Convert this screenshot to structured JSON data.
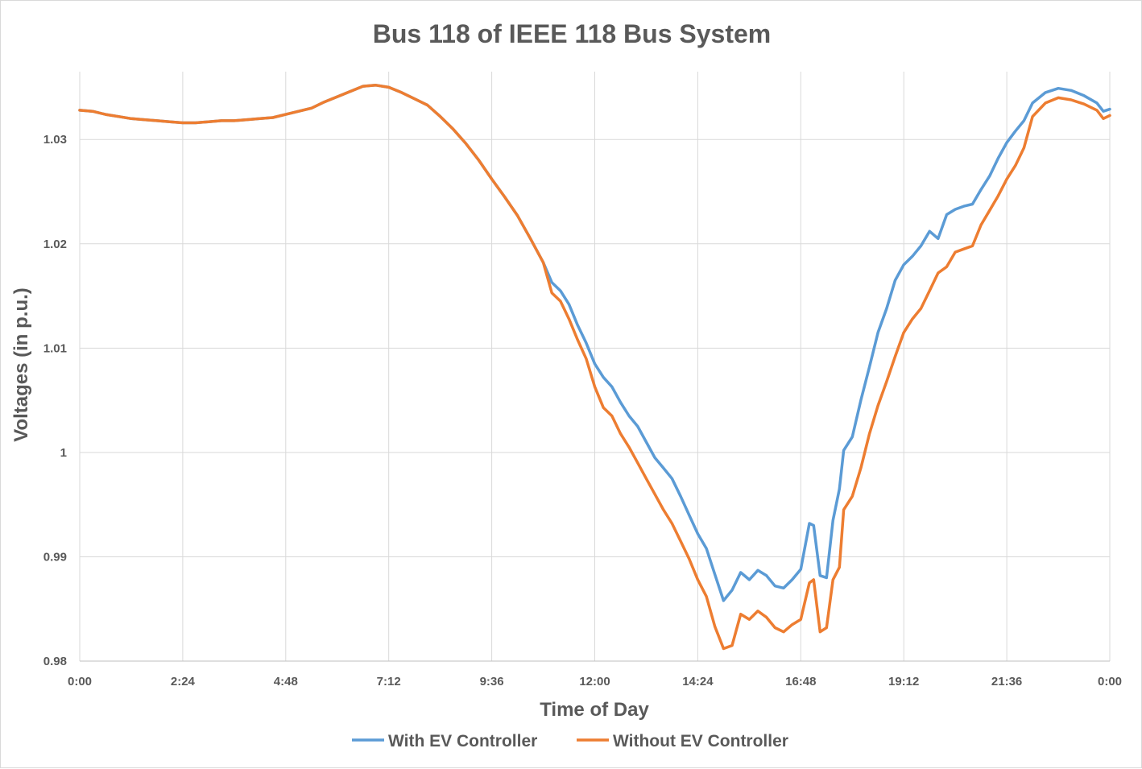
{
  "chart_data": {
    "type": "line",
    "title": "Bus 118 of IEEE 118 Bus System",
    "xlabel": "Time of Day",
    "ylabel": "Voltages (in p.u.)",
    "ylim": [
      0.98,
      1.0365
    ],
    "yticks": [
      0.98,
      0.99,
      1,
      1.01,
      1.02,
      1.03
    ],
    "ytick_labels": [
      "0.98",
      "0.99",
      "1",
      "1.01",
      "1.02",
      "1.03"
    ],
    "xlim": [
      0,
      24
    ],
    "xticks": [
      0,
      2.4,
      4.8,
      7.2,
      9.6,
      12,
      14.4,
      16.8,
      19.2,
      21.6,
      24
    ],
    "xtick_labels": [
      "0:00",
      "2:24",
      "4:48",
      "7:12",
      "9:36",
      "12:00",
      "14:24",
      "16:48",
      "19:12",
      "21:36",
      "0:00"
    ],
    "grid": true,
    "legend_position": "bottom",
    "series": [
      {
        "name": "With EV Controller",
        "color": "#5b9bd5",
        "points": [
          [
            0,
            1.0328
          ],
          [
            0.3,
            1.0327
          ],
          [
            0.6,
            1.0324
          ],
          [
            0.9,
            1.0322
          ],
          [
            1.2,
            1.032
          ],
          [
            1.5,
            1.0319
          ],
          [
            1.8,
            1.0318
          ],
          [
            2.1,
            1.0317
          ],
          [
            2.4,
            1.0316
          ],
          [
            2.7,
            1.0316
          ],
          [
            3.0,
            1.0317
          ],
          [
            3.3,
            1.0318
          ],
          [
            3.6,
            1.0318
          ],
          [
            3.9,
            1.0319
          ],
          [
            4.2,
            1.032
          ],
          [
            4.5,
            1.0321
          ],
          [
            4.8,
            1.0324
          ],
          [
            5.1,
            1.0327
          ],
          [
            5.4,
            1.033
          ],
          [
            5.7,
            1.0336
          ],
          [
            6.0,
            1.0341
          ],
          [
            6.3,
            1.0346
          ],
          [
            6.6,
            1.0351
          ],
          [
            6.9,
            1.0352
          ],
          [
            7.2,
            1.035
          ],
          [
            7.5,
            1.0345
          ],
          [
            7.8,
            1.0339
          ],
          [
            8.1,
            1.0333
          ],
          [
            8.4,
            1.0322
          ],
          [
            8.7,
            1.031
          ],
          [
            9.0,
            1.0296
          ],
          [
            9.3,
            1.028
          ],
          [
            9.6,
            1.0262
          ],
          [
            9.9,
            1.0245
          ],
          [
            10.2,
            1.0227
          ],
          [
            10.5,
            1.0205
          ],
          [
            10.8,
            1.0182
          ],
          [
            11.0,
            1.0163
          ],
          [
            11.2,
            1.0155
          ],
          [
            11.4,
            1.0142
          ],
          [
            11.6,
            1.0122
          ],
          [
            11.8,
            1.0105
          ],
          [
            12.0,
            1.0085
          ],
          [
            12.2,
            1.0072
          ],
          [
            12.4,
            1.0063
          ],
          [
            12.6,
            1.0048
          ],
          [
            12.8,
            1.0035
          ],
          [
            13.0,
            1.0025
          ],
          [
            13.2,
            1.001
          ],
          [
            13.4,
            0.9995
          ],
          [
            13.6,
            0.9985
          ],
          [
            13.8,
            0.9975
          ],
          [
            14.0,
            0.9958
          ],
          [
            14.2,
            0.994
          ],
          [
            14.4,
            0.9922
          ],
          [
            14.6,
            0.9908
          ],
          [
            14.8,
            0.9883
          ],
          [
            15.0,
            0.9858
          ],
          [
            15.2,
            0.9868
          ],
          [
            15.4,
            0.9885
          ],
          [
            15.6,
            0.9878
          ],
          [
            15.8,
            0.9887
          ],
          [
            16.0,
            0.9882
          ],
          [
            16.2,
            0.9872
          ],
          [
            16.4,
            0.987
          ],
          [
            16.6,
            0.9878
          ],
          [
            16.8,
            0.9888
          ],
          [
            17.0,
            0.9932
          ],
          [
            17.1,
            0.993
          ],
          [
            17.25,
            0.9882
          ],
          [
            17.4,
            0.988
          ],
          [
            17.55,
            0.9935
          ],
          [
            17.7,
            0.9965
          ],
          [
            17.8,
            1.0002
          ],
          [
            18.0,
            1.0015
          ],
          [
            18.2,
            1.005
          ],
          [
            18.4,
            1.0082
          ],
          [
            18.6,
            1.0115
          ],
          [
            18.8,
            1.0138
          ],
          [
            19.0,
            1.0165
          ],
          [
            19.2,
            1.018
          ],
          [
            19.4,
            1.0188
          ],
          [
            19.6,
            1.0198
          ],
          [
            19.8,
            1.0212
          ],
          [
            20.0,
            1.0205
          ],
          [
            20.2,
            1.0228
          ],
          [
            20.4,
            1.0233
          ],
          [
            20.6,
            1.0236
          ],
          [
            20.8,
            1.0238
          ],
          [
            21.0,
            1.0252
          ],
          [
            21.2,
            1.0265
          ],
          [
            21.4,
            1.0282
          ],
          [
            21.6,
            1.0297
          ],
          [
            21.8,
            1.0308
          ],
          [
            22.0,
            1.0318
          ],
          [
            22.2,
            1.0335
          ],
          [
            22.5,
            1.0345
          ],
          [
            22.8,
            1.0349
          ],
          [
            23.1,
            1.0347
          ],
          [
            23.4,
            1.0342
          ],
          [
            23.7,
            1.0335
          ],
          [
            23.85,
            1.0327
          ],
          [
            24.0,
            1.0329
          ]
        ]
      },
      {
        "name": "Without EV Controller",
        "color": "#ed7d31",
        "points": [
          [
            0,
            1.0328
          ],
          [
            0.3,
            1.0327
          ],
          [
            0.6,
            1.0324
          ],
          [
            0.9,
            1.0322
          ],
          [
            1.2,
            1.032
          ],
          [
            1.5,
            1.0319
          ],
          [
            1.8,
            1.0318
          ],
          [
            2.1,
            1.0317
          ],
          [
            2.4,
            1.0316
          ],
          [
            2.7,
            1.0316
          ],
          [
            3.0,
            1.0317
          ],
          [
            3.3,
            1.0318
          ],
          [
            3.6,
            1.0318
          ],
          [
            3.9,
            1.0319
          ],
          [
            4.2,
            1.032
          ],
          [
            4.5,
            1.0321
          ],
          [
            4.8,
            1.0324
          ],
          [
            5.1,
            1.0327
          ],
          [
            5.4,
            1.033
          ],
          [
            5.7,
            1.0336
          ],
          [
            6.0,
            1.0341
          ],
          [
            6.3,
            1.0346
          ],
          [
            6.6,
            1.0351
          ],
          [
            6.9,
            1.0352
          ],
          [
            7.2,
            1.035
          ],
          [
            7.5,
            1.0345
          ],
          [
            7.8,
            1.0339
          ],
          [
            8.1,
            1.0333
          ],
          [
            8.4,
            1.0322
          ],
          [
            8.7,
            1.031
          ],
          [
            9.0,
            1.0296
          ],
          [
            9.3,
            1.028
          ],
          [
            9.6,
            1.0262
          ],
          [
            9.9,
            1.0245
          ],
          [
            10.2,
            1.0227
          ],
          [
            10.5,
            1.0205
          ],
          [
            10.8,
            1.0182
          ],
          [
            11.0,
            1.0153
          ],
          [
            11.2,
            1.0145
          ],
          [
            11.4,
            1.0128
          ],
          [
            11.6,
            1.0108
          ],
          [
            11.8,
            1.009
          ],
          [
            12.0,
            1.0063
          ],
          [
            12.2,
            1.0043
          ],
          [
            12.4,
            1.0035
          ],
          [
            12.6,
            1.0018
          ],
          [
            12.8,
            1.0005
          ],
          [
            13.0,
            0.999
          ],
          [
            13.2,
            0.9975
          ],
          [
            13.4,
            0.996
          ],
          [
            13.6,
            0.9945
          ],
          [
            13.8,
            0.9932
          ],
          [
            14.0,
            0.9915
          ],
          [
            14.2,
            0.9898
          ],
          [
            14.4,
            0.9878
          ],
          [
            14.6,
            0.9862
          ],
          [
            14.8,
            0.9833
          ],
          [
            15.0,
            0.9812
          ],
          [
            15.2,
            0.9815
          ],
          [
            15.4,
            0.9845
          ],
          [
            15.6,
            0.984
          ],
          [
            15.8,
            0.9848
          ],
          [
            16.0,
            0.9842
          ],
          [
            16.2,
            0.9832
          ],
          [
            16.4,
            0.9828
          ],
          [
            16.6,
            0.9835
          ],
          [
            16.8,
            0.984
          ],
          [
            17.0,
            0.9875
          ],
          [
            17.1,
            0.9878
          ],
          [
            17.25,
            0.9828
          ],
          [
            17.4,
            0.9832
          ],
          [
            17.55,
            0.9878
          ],
          [
            17.7,
            0.989
          ],
          [
            17.8,
            0.9945
          ],
          [
            18.0,
            0.9958
          ],
          [
            18.2,
            0.9985
          ],
          [
            18.4,
            1.0018
          ],
          [
            18.6,
            1.0045
          ],
          [
            18.8,
            1.0068
          ],
          [
            19.0,
            1.0092
          ],
          [
            19.2,
            1.0115
          ],
          [
            19.4,
            1.0128
          ],
          [
            19.6,
            1.0138
          ],
          [
            19.8,
            1.0155
          ],
          [
            20.0,
            1.0172
          ],
          [
            20.2,
            1.0178
          ],
          [
            20.4,
            1.0192
          ],
          [
            20.6,
            1.0195
          ],
          [
            20.8,
            1.0198
          ],
          [
            21.0,
            1.0218
          ],
          [
            21.2,
            1.0232
          ],
          [
            21.4,
            1.0246
          ],
          [
            21.6,
            1.0262
          ],
          [
            21.8,
            1.0275
          ],
          [
            22.0,
            1.0292
          ],
          [
            22.2,
            1.0322
          ],
          [
            22.5,
            1.0335
          ],
          [
            22.8,
            1.034
          ],
          [
            23.1,
            1.0338
          ],
          [
            23.4,
            1.0334
          ],
          [
            23.7,
            1.0328
          ],
          [
            23.85,
            1.032
          ],
          [
            24.0,
            1.0323
          ]
        ]
      }
    ]
  }
}
